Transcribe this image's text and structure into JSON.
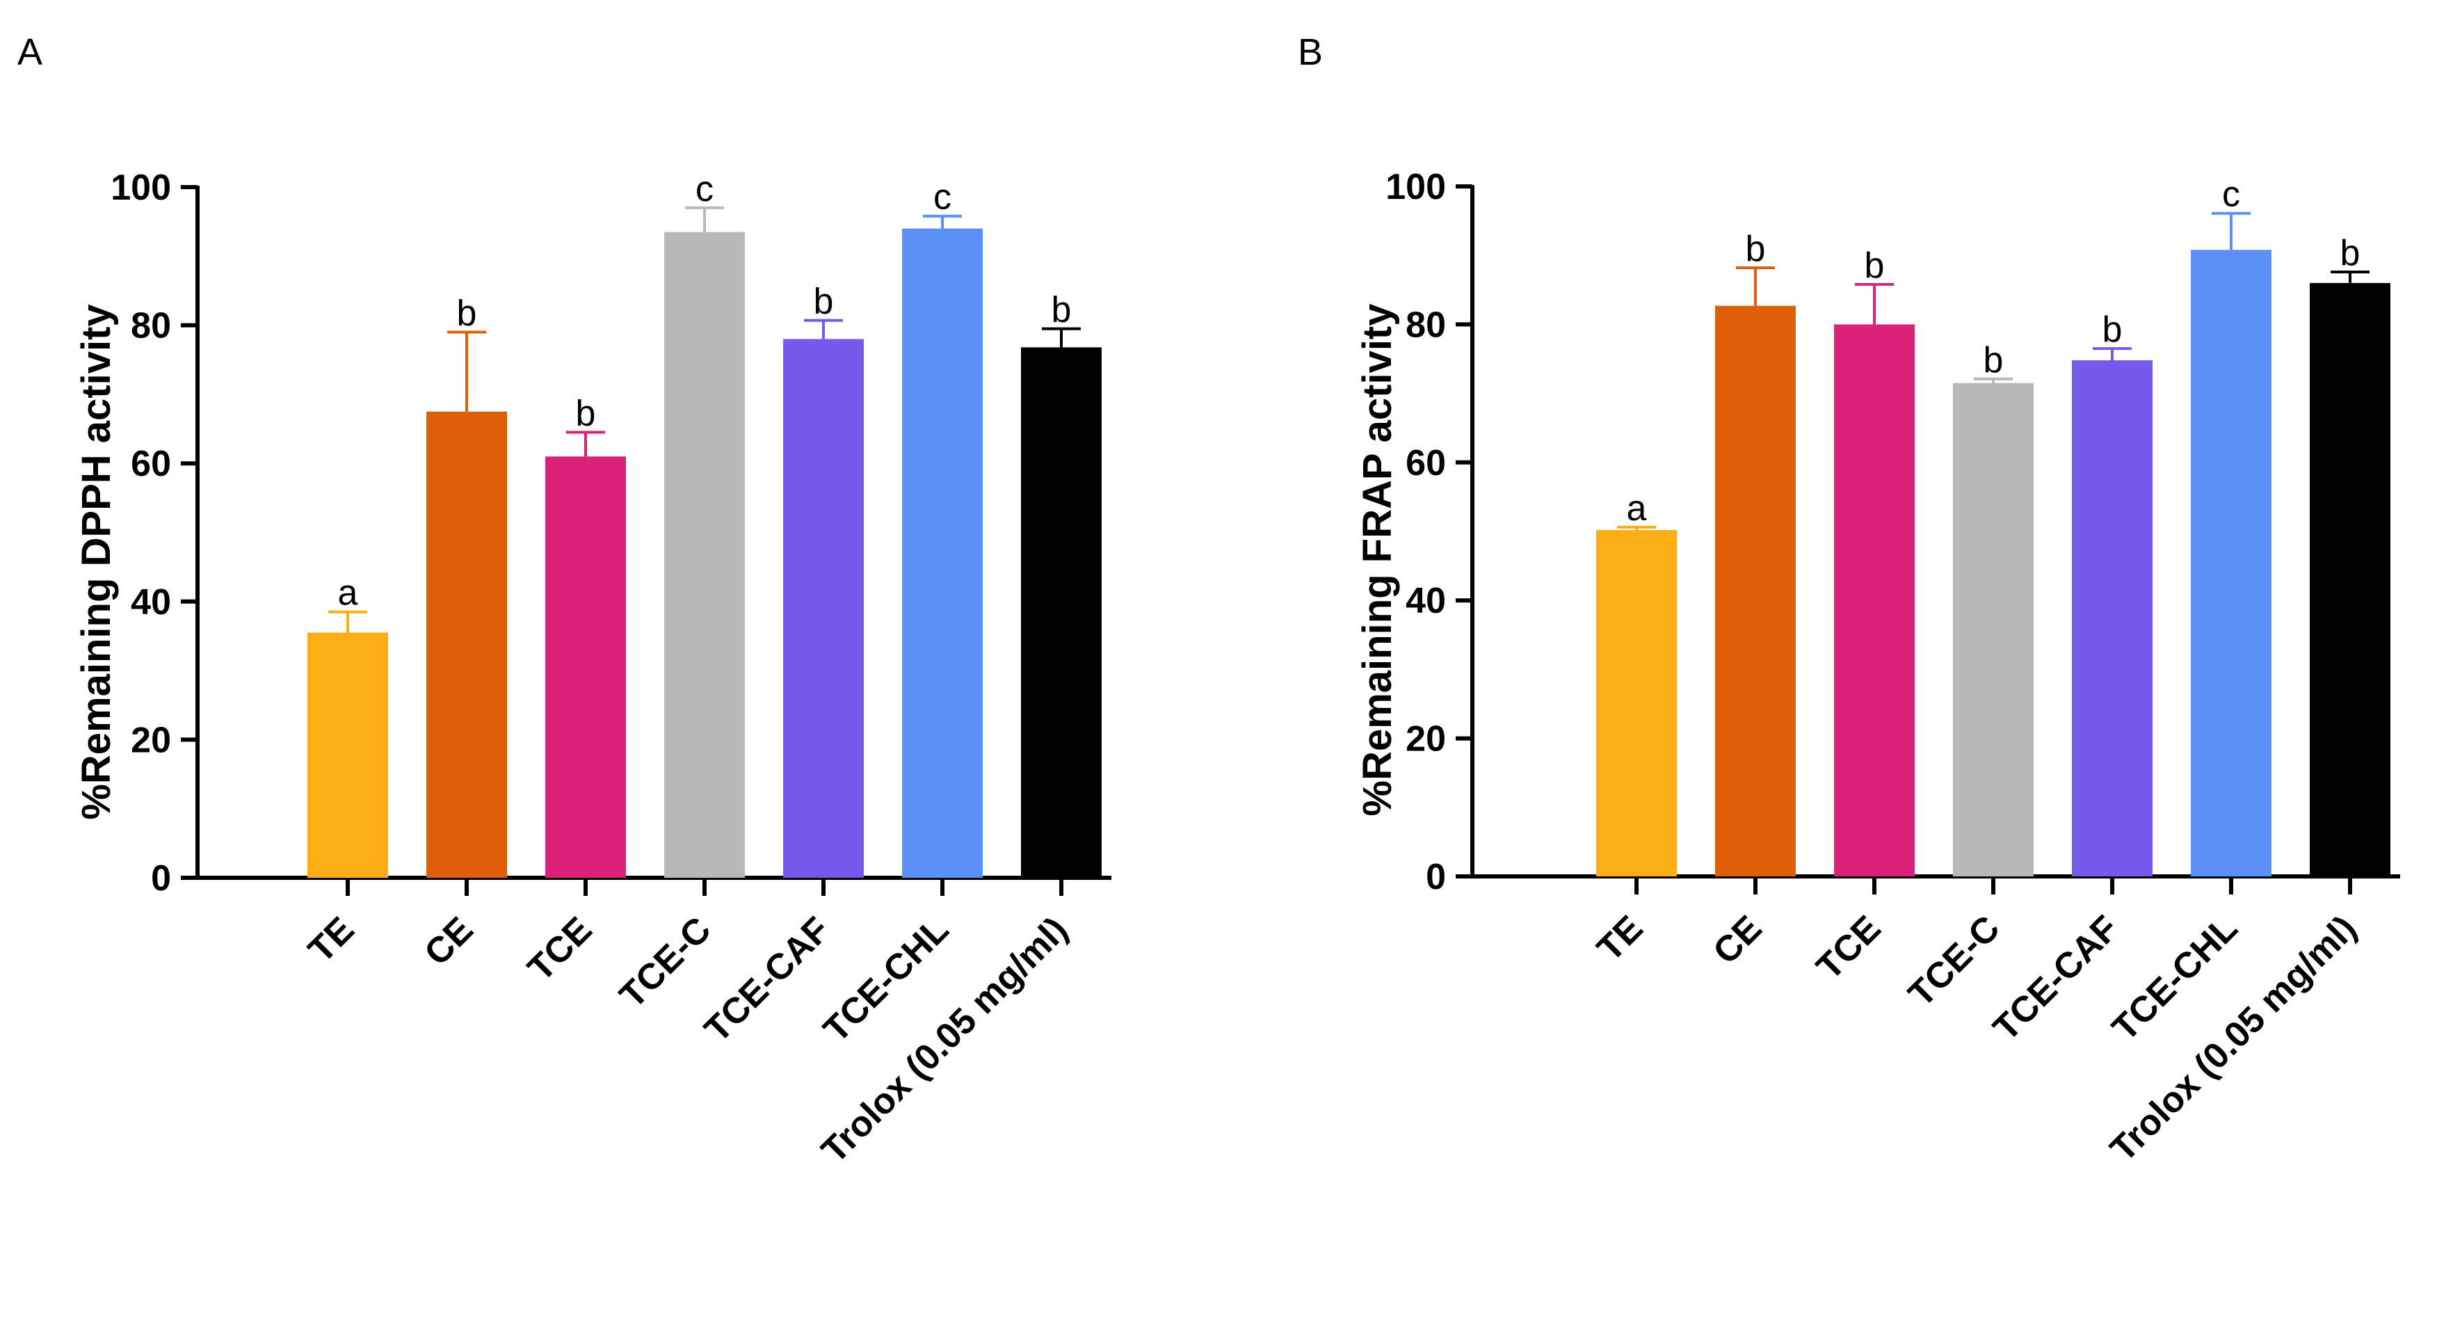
{
  "chart_data": [
    {
      "type": "bar",
      "panel_label": "A",
      "title": "",
      "xlabel": "",
      "ylabel": "%Remaining DPPH activity",
      "ylim": [
        0,
        100
      ],
      "yticks": [
        0,
        20,
        40,
        60,
        80,
        100
      ],
      "categories": [
        "TE",
        "CE",
        "TCE",
        "TCE-C",
        "TCE-CAF",
        "TCE-CHL",
        "Trolox (0.05 mg/ml)"
      ],
      "values": [
        35.5,
        67.5,
        61.0,
        93.5,
        78.0,
        94.0,
        76.8
      ],
      "error_plus": [
        3.0,
        11.5,
        3.5,
        3.5,
        2.7,
        1.8,
        2.7
      ],
      "significance_letters": [
        "a",
        "b",
        "b",
        "c",
        "b",
        "c",
        "b"
      ],
      "colors": [
        "#FCAE17",
        "#E05E0A",
        "#DB2278",
        "#B8B8B8",
        "#7659E8",
        "#5A90F8",
        "#000000"
      ],
      "grid": false,
      "legend": "none"
    },
    {
      "type": "bar",
      "panel_label": "B",
      "title": "",
      "xlabel": "",
      "ylabel": "%Remaining FRAP activity",
      "ylim": [
        0,
        100
      ],
      "yticks": [
        0,
        20,
        40,
        60,
        80,
        100
      ],
      "categories": [
        "TE",
        "CE",
        "TCE",
        "TCE-C",
        "TCE-CAF",
        "TCE-CHL",
        "Trolox (0.05 mg/ml)"
      ],
      "values": [
        50.2,
        82.7,
        80.0,
        71.5,
        74.8,
        90.8,
        86.0
      ],
      "error_plus": [
        0.4,
        5.5,
        5.8,
        0.6,
        1.7,
        5.3,
        1.6
      ],
      "significance_letters": [
        "a",
        "b",
        "b",
        "b",
        "b",
        "c",
        "b"
      ],
      "colors": [
        "#FCAE17",
        "#E05E0A",
        "#DB2278",
        "#B8B8B8",
        "#7659E8",
        "#5A90F8",
        "#000000"
      ],
      "grid": false,
      "legend": "none"
    }
  ]
}
